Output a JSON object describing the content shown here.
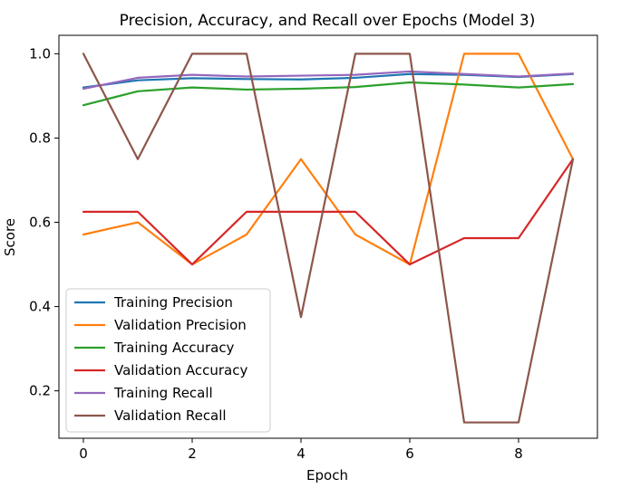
{
  "chart_data": {
    "type": "line",
    "title": "Precision, Accuracy, and Recall over Epochs (Model 3)",
    "xlabel": "Epoch",
    "ylabel": "Score",
    "xlim": [
      -0.45,
      9.45
    ],
    "ylim": [
      0.0875,
      1.0438
    ],
    "xticks": [
      0,
      2,
      4,
      6,
      8
    ],
    "yticks": [
      0.2,
      0.4,
      0.6,
      0.8,
      1.0
    ],
    "xtick_labels": [
      "0",
      "2",
      "4",
      "6",
      "8"
    ],
    "ytick_labels": [
      "0.2",
      "0.4",
      "0.6",
      "0.8",
      "1.0"
    ],
    "grid": false,
    "legend_position": "lower-left",
    "x": [
      0,
      1,
      2,
      3,
      4,
      5,
      6,
      7,
      8,
      9
    ],
    "series": [
      {
        "name": "Training Precision",
        "color": "#1f77b4",
        "values": [
          0.92,
          0.937,
          0.942,
          0.94,
          0.939,
          0.943,
          0.952,
          0.95,
          0.945,
          0.952
        ]
      },
      {
        "name": "Validation Precision",
        "color": "#ff7f0e",
        "values": [
          0.571,
          0.6,
          0.5,
          0.571,
          0.75,
          0.571,
          0.5,
          1.0,
          1.0,
          0.75
        ]
      },
      {
        "name": "Training Accuracy",
        "color": "#2ca02c",
        "values": [
          0.878,
          0.911,
          0.92,
          0.915,
          0.917,
          0.921,
          0.932,
          0.927,
          0.92,
          0.928
        ]
      },
      {
        "name": "Validation Accuracy",
        "color": "#d62728",
        "values": [
          0.625,
          0.625,
          0.5,
          0.625,
          0.625,
          0.625,
          0.5,
          0.5625,
          0.5625,
          0.75
        ]
      },
      {
        "name": "Training Recall",
        "color": "#9467bd",
        "values": [
          0.917,
          0.943,
          0.95,
          0.946,
          0.948,
          0.95,
          0.958,
          0.952,
          0.946,
          0.953
        ]
      },
      {
        "name": "Validation Recall",
        "color": "#8c564b",
        "values": [
          1.0,
          0.75,
          1.0,
          1.0,
          0.375,
          1.0,
          1.0,
          0.125,
          0.125,
          0.75
        ]
      }
    ]
  }
}
